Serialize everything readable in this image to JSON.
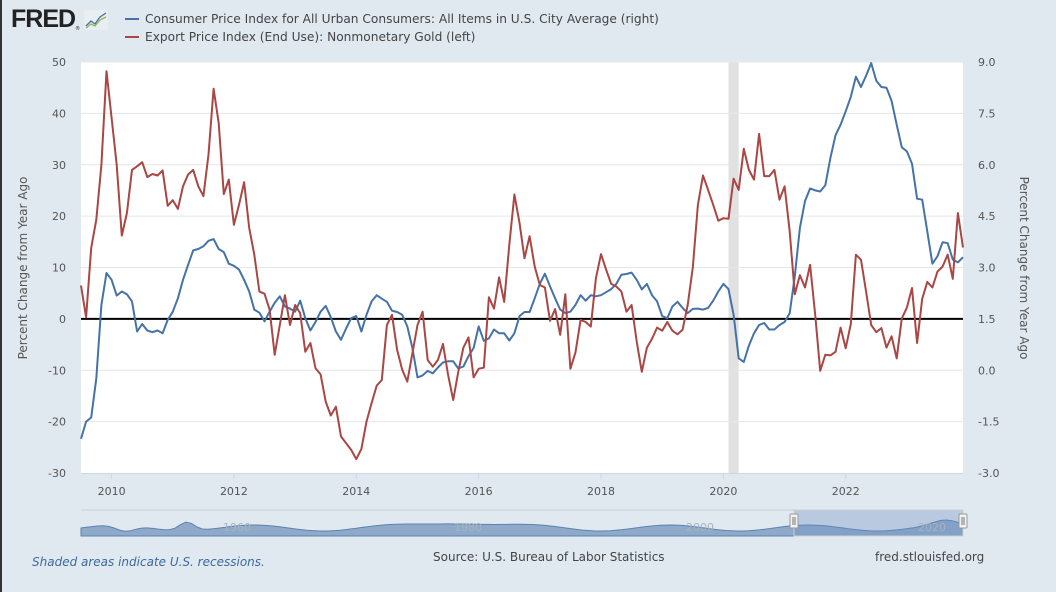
{
  "header": {
    "logo_text": "FRED",
    "logo_reg": "®",
    "logo_icon": "chart-line-icon"
  },
  "legend": [
    {
      "label": "Consumer Price Index for All Urban Consumers: All Items in U.S. City Average (right)",
      "color": "#4572a7"
    },
    {
      "label": "Export Price Index (End Use): Nonmonetary Gold (left)",
      "color": "#aa4643"
    }
  ],
  "footer": {
    "recession_note": "Shaded areas indicate U.S. recessions.",
    "source": "Source: U.S. Bureau of Labor Statistics",
    "site": "fred.stlouisfed.org"
  },
  "navigator": {
    "labels": [
      "1960",
      "1980",
      "2000",
      "2020"
    ],
    "selected_range": [
      "2021-03",
      "2023-12"
    ]
  },
  "chart_data": {
    "type": "line",
    "title": "",
    "xlabel": "",
    "ylabel_left": "Percent Change from Year Ago",
    "ylabel_right": "Percent Change from Year Ago",
    "x_start": "2009-07",
    "x_end": "2023-12",
    "frequency": "monthly",
    "x_ticks": [
      "2010",
      "2012",
      "2014",
      "2016",
      "2018",
      "2020",
      "2022"
    ],
    "ylim_left": [
      -30,
      50
    ],
    "yticks_left": [
      "-30",
      "-20",
      "-10",
      "0",
      "10",
      "20",
      "30",
      "40",
      "50"
    ],
    "ylim_right": [
      -3.0,
      9.0
    ],
    "yticks_right": [
      "-3.0",
      "-1.5",
      "0.0",
      "1.5",
      "3.0",
      "4.5",
      "6.0",
      "7.5",
      "9.0"
    ],
    "zero_line_left": 0,
    "grid": true,
    "recessions": [
      {
        "start": "2020-02",
        "end": "2020-04"
      }
    ],
    "series": [
      {
        "name": "Consumer Price Index for All Urban Consumers: All Items in U.S. City Average",
        "axis": "right",
        "color": "#4572a7",
        "values": [
          -2,
          -1.5,
          -1.38,
          -0.24,
          1.91,
          2.84,
          2.64,
          2.18,
          2.3,
          2.22,
          2.01,
          1.13,
          1.35,
          1.16,
          1.11,
          1.16,
          1.08,
          1.47,
          1.71,
          2.1,
          2.64,
          3.08,
          3.5,
          3.54,
          3.62,
          3.78,
          3.83,
          3.54,
          3.45,
          3.11,
          3.05,
          2.94,
          2.64,
          2.3,
          1.77,
          1.68,
          1.43,
          1.71,
          1.97,
          2.16,
          1.86,
          1.8,
          1.71,
          2.03,
          1.52,
          1.16,
          1.41,
          1.71,
          1.88,
          1.55,
          1.13,
          0.89,
          1.22,
          1.52,
          1.58,
          1.13,
          1.62,
          2.01,
          2.19,
          2.09,
          2,
          1.74,
          1.7,
          1.62,
          1.28,
          0.65,
          -0.21,
          -0.15,
          -0.02,
          -0.09,
          0.08,
          0.23,
          0.26,
          0.26,
          0.05,
          0.11,
          0.41,
          0.65,
          1.28,
          0.86,
          0.93,
          1.19,
          1.08,
          1.08,
          0.87,
          1.08,
          1.58,
          1.7,
          1.7,
          2.1,
          2.52,
          2.82,
          2.45,
          2.1,
          1.77,
          1.67,
          1.71,
          1.91,
          2.19,
          2.03,
          2.19,
          2.16,
          2.19,
          2.28,
          2.37,
          2.52,
          2.79,
          2.81,
          2.85,
          2.64,
          2.36,
          2.52,
          2.19,
          2.01,
          1.58,
          1.52,
          1.86,
          2,
          1.82,
          1.67,
          1.79,
          1.8,
          1.77,
          1.82,
          2.03,
          2.3,
          2.52,
          2.37,
          1.62,
          0.35,
          0.24,
          0.72,
          1.08,
          1.32,
          1.38,
          1.19,
          1.19,
          1.32,
          1.41,
          1.67,
          2.75,
          4.16,
          4.94,
          5.31,
          5.25,
          5.22,
          5.4,
          6.2,
          6.86,
          7.17,
          7.56,
          7.98,
          8.57,
          8.27,
          8.6,
          8.97,
          8.45,
          8.27,
          8.25,
          7.86,
          7.17,
          6.51,
          6.39,
          6.03,
          5.01,
          4.98,
          4.05,
          3.11,
          3.33,
          3.74,
          3.71,
          3.23,
          3.15,
          3.3
        ]
      },
      {
        "name": "Export Price Index (End Use): Nonmonetary Gold",
        "axis": "left",
        "color": "#aa4643",
        "values": [
          6.5,
          0.3,
          13.8,
          19.3,
          30,
          48.2,
          39.1,
          30,
          16.2,
          20.6,
          29,
          29.7,
          30.5,
          27.6,
          28.2,
          27.9,
          28.9,
          22,
          23.1,
          21.4,
          25.8,
          28.1,
          29,
          25.8,
          23.9,
          32,
          44.8,
          38.1,
          24.3,
          27.1,
          18.3,
          22.2,
          26.6,
          17.7,
          12.5,
          5.3,
          4.9,
          1.8,
          -7,
          -1.2,
          4.6,
          -1.2,
          2.7,
          1.1,
          -6.4,
          -4.7,
          -9.6,
          -10.8,
          -16.1,
          -18.8,
          -17.1,
          -22.9,
          -24.2,
          -25.5,
          -27.3,
          -25.3,
          -20,
          -16.4,
          -13,
          -11.9,
          -1.2,
          0.8,
          -6,
          -9.9,
          -12.2,
          -6.7,
          -1.2,
          1.4,
          -8,
          -9.3,
          -8,
          -4.9,
          -10.9,
          -15.8,
          -10.3,
          -5.6,
          -3.6,
          -11.4,
          -9.7,
          -9.5,
          4.2,
          2,
          8.1,
          3.3,
          14.4,
          24.2,
          18.7,
          11.8,
          16.1,
          10.2,
          6.6,
          6.1,
          -0.4,
          1.9,
          -3.1,
          4.8,
          -9.7,
          -6.5,
          -0.2,
          -0.6,
          -1.5,
          7.9,
          12.6,
          9.6,
          6.8,
          6.3,
          5.3,
          1.4,
          2.7,
          -4.4,
          -10.3,
          -5.6,
          -3.9,
          -1.7,
          -2.3,
          -0.6,
          -2.3,
          -3,
          -2.1,
          2.7,
          10,
          22.2,
          27.9,
          25.1,
          22.2,
          19.1,
          19.6,
          19.5,
          27.3,
          25.1,
          33.1,
          29,
          27.1,
          36,
          27.8,
          27.8,
          29,
          23.2,
          25.8,
          17,
          4.8,
          8.5,
          6.1,
          10.5,
          0.8,
          -10.1,
          -7,
          -7.1,
          -6.4,
          -1.7,
          -5.7,
          -1,
          12.5,
          11.5,
          5.3,
          -1.2,
          -2.6,
          -1.8,
          -5.6,
          -3.4,
          -7.7,
          0.1,
          2.2,
          6,
          -4.7,
          3.9,
          7.2,
          6.1,
          9.2,
          10.2,
          12.5,
          7.8,
          20.6,
          13.9
        ]
      }
    ]
  }
}
